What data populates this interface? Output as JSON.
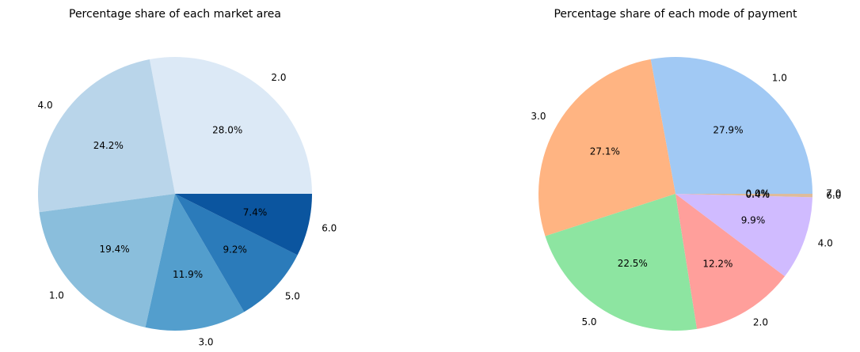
{
  "chart_data": [
    {
      "type": "pie",
      "title": "Percentage share of each market area",
      "labels": [
        "2.0",
        "4.0",
        "1.0",
        "3.0",
        "5.0",
        "6.0"
      ],
      "values": [
        28.0,
        24.2,
        19.4,
        11.9,
        9.2,
        7.4
      ],
      "percent_labels": [
        "28.0%",
        "24.2%",
        "19.4%",
        "11.9%",
        "9.2%",
        "7.4%"
      ],
      "colors": [
        "#dce9f6",
        "#b9d5ea",
        "#8abedc",
        "#539ecd",
        "#2b7bba",
        "#0b559f"
      ],
      "start_angle_deg": 0,
      "direction": "counterclockwise",
      "legend": "none"
    },
    {
      "type": "pie",
      "title": "Percentage share of each mode of payment",
      "labels": [
        "1.0",
        "3.0",
        "5.0",
        "2.0",
        "4.0",
        "6.0",
        "7.0"
      ],
      "values": [
        27.9,
        27.1,
        22.5,
        12.2,
        9.9,
        0.4,
        0.0
      ],
      "percent_labels": [
        "27.9%",
        "27.1%",
        "22.5%",
        "12.2%",
        "9.9%",
        "0.4%",
        "0.0%"
      ],
      "colors": [
        "#a1c9f4",
        "#ffb482",
        "#8de5a1",
        "#ff9f9b",
        "#d0bbff",
        "#debb9b",
        "#fab0e4"
      ],
      "start_angle_deg": 0,
      "direction": "counterclockwise",
      "legend": "none"
    }
  ]
}
